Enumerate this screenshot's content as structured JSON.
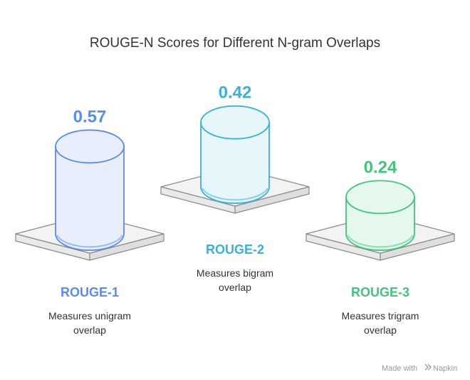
{
  "chart_data": {
    "type": "bar",
    "title": "ROUGE-N Scores for Different N-gram Overlaps",
    "categories": [
      "ROUGE-1",
      "ROUGE-2",
      "ROUGE-3"
    ],
    "values": [
      0.57,
      0.42,
      0.24
    ],
    "value_labels": [
      "0.57",
      "0.42",
      "0.24"
    ],
    "descriptions": [
      [
        "Measures unigram",
        "overlap"
      ],
      [
        "Measures bigram",
        "overlap"
      ],
      [
        "Measures trigram",
        "overlap"
      ]
    ],
    "colors": [
      "#5b8ce6",
      "#3bb0d8",
      "#45c37e"
    ],
    "fills": [
      "#e8eefc",
      "#e6f6fb",
      "#e4f8ee"
    ]
  },
  "watermark": {
    "prefix": "Made with",
    "brand": "Napkin",
    "icon": "napkin-logo-icon"
  }
}
